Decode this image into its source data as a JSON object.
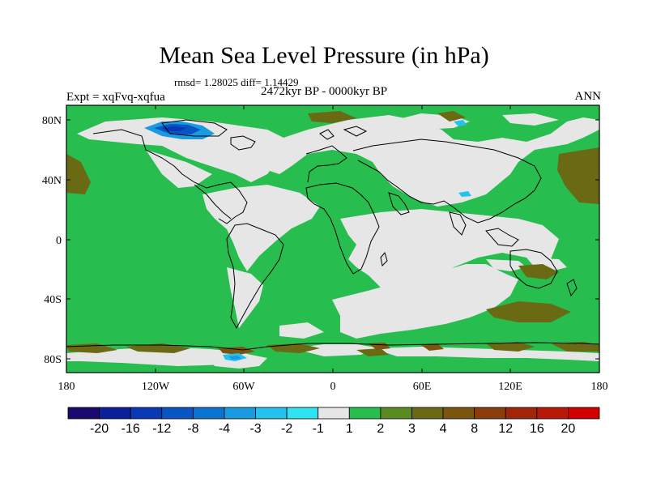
{
  "header": {
    "title": "Mean Sea Level Pressure (in hPa)",
    "stats": "rmsd= 1.28025 diff= 1.14429",
    "experiment": "Expt = xqFvq-xqfua",
    "period": "2472kyr BP - 0000kyr BP",
    "season": "ANN"
  },
  "map": {
    "lat_labels": [
      "80N",
      "40N",
      "0",
      "40S",
      "80S"
    ],
    "lon_labels": [
      "180",
      "120W",
      "60W",
      "0",
      "60E",
      "120E",
      "180"
    ]
  },
  "colorbar": {
    "labels": [
      "-20",
      "-16",
      "-12",
      "-8",
      "-4",
      "-3",
      "-2",
      "-1",
      "1",
      "2",
      "3",
      "4",
      "8",
      "12",
      "16",
      "20"
    ],
    "colors": [
      "#1a0a6e",
      "#0b1f9a",
      "#0a39b5",
      "#0a55c4",
      "#0a74d0",
      "#1a9be0",
      "#24c3ef",
      "#30e3f0",
      "#e6e6e6",
      "#27bd4f",
      "#5a8a22",
      "#6a6a14",
      "#7a5510",
      "#8a3c0c",
      "#a0260a",
      "#b81808",
      "#d00000"
    ]
  }
}
